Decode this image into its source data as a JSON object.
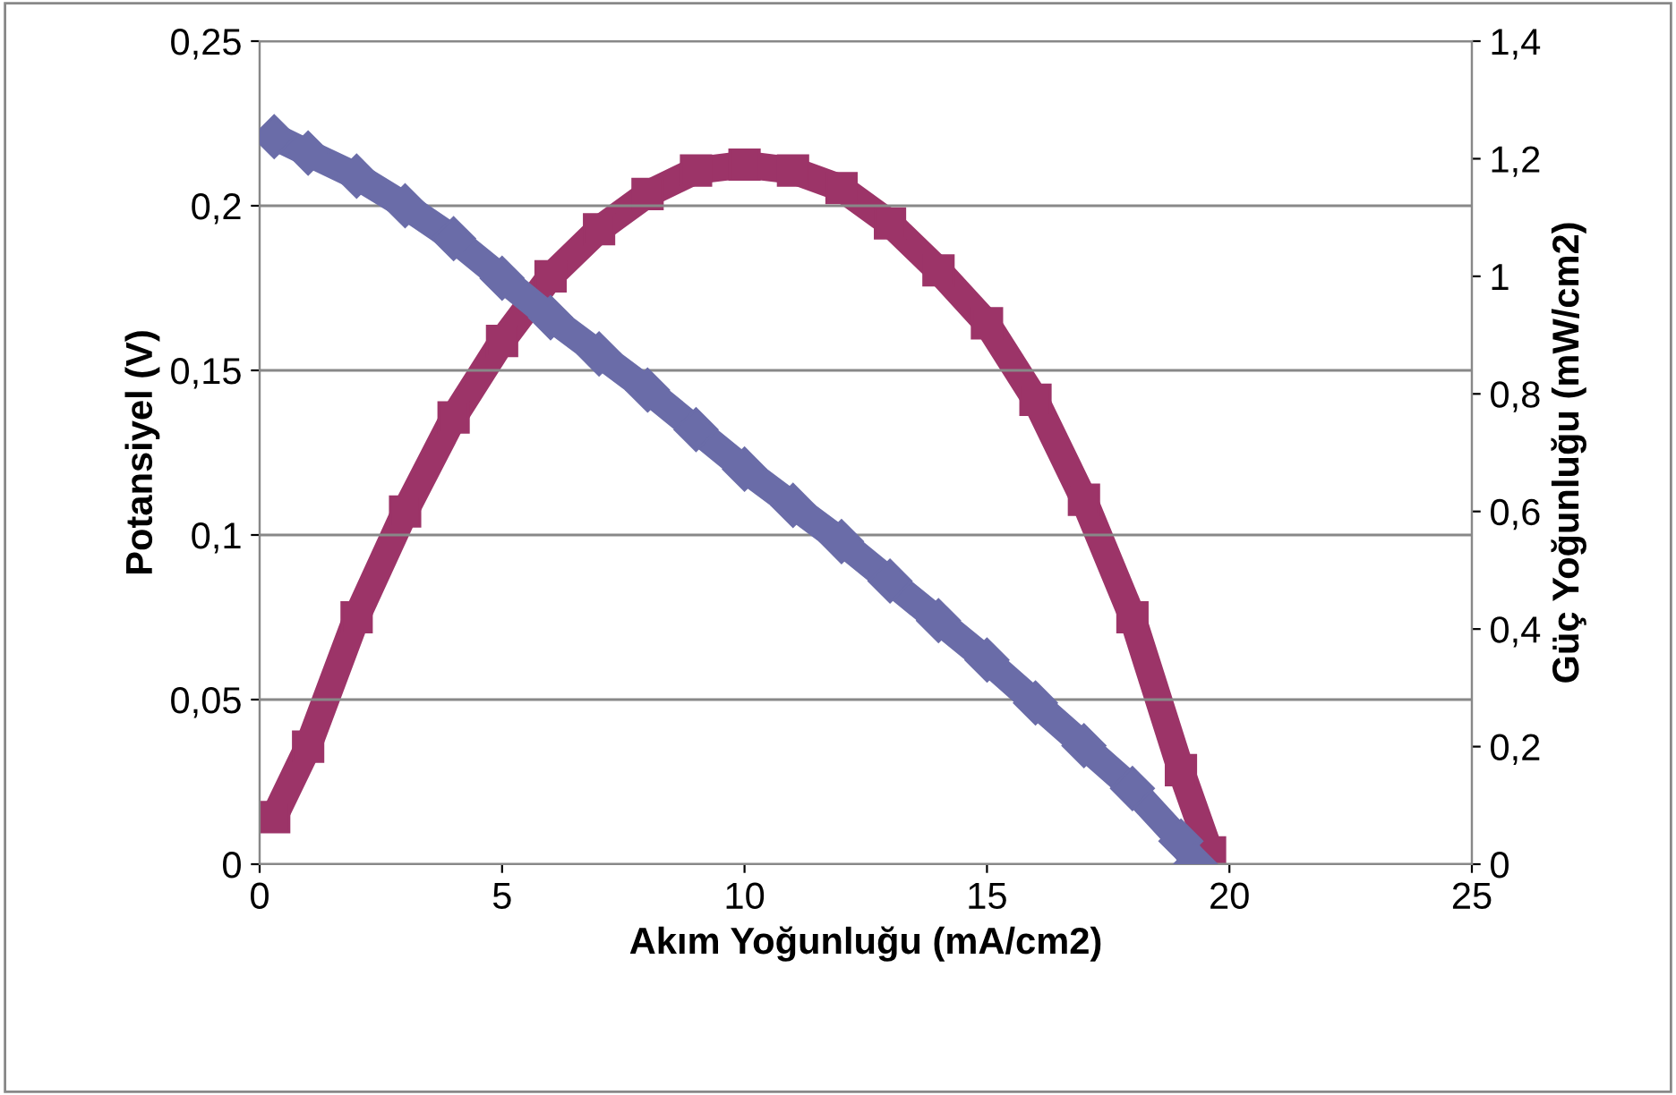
{
  "chart_data": {
    "type": "line",
    "line_style": "solid",
    "xlabel": "Akım Yoğunluğu (mA/cm2)",
    "ylabel": "Potansiyel (V)",
    "y2label": "Güç Yoğunluğu (mW/cm2)",
    "xlim": [
      0,
      25
    ],
    "xticks": [
      0,
      5,
      10,
      15,
      20,
      25
    ],
    "ylim": [
      0,
      0.25
    ],
    "yticks": [
      0,
      {
        "value": 0.05,
        "label": "0,05"
      },
      {
        "value": 0.1,
        "label": "0,1"
      },
      {
        "value": 0.15,
        "label": "0,15"
      },
      {
        "value": 0.2,
        "label": "0,2"
      },
      {
        "value": 0.25,
        "label": "0,25"
      }
    ],
    "y2lim": [
      0,
      1.4
    ],
    "y2ticks": [
      0,
      {
        "value": 0.2,
        "label": "0,2"
      },
      {
        "value": 0.4,
        "label": "0,4"
      },
      {
        "value": 0.6,
        "label": "0,6"
      },
      {
        "value": 0.8,
        "label": "0,8"
      },
      1,
      {
        "value": 1.2,
        "label": "1,2"
      },
      {
        "value": 1.4,
        "label": "1,4"
      }
    ],
    "grid": "y",
    "legend": false,
    "series": [
      {
        "color": "#6a6ca8",
        "marker": "diamond",
        "x": [
          0.3,
          1,
          2,
          3,
          4,
          5,
          6,
          7,
          8,
          9,
          10,
          11,
          12,
          13,
          14,
          15,
          16,
          17,
          18,
          19,
          19.3
        ],
        "values": [
          0.221,
          0.216,
          0.209,
          0.2,
          0.19,
          0.178,
          0.166,
          0.155,
          0.144,
          0.132,
          0.12,
          0.109,
          0.098,
          0.086,
          0.074,
          0.062,
          0.049,
          0.036,
          0.023,
          0.007,
          0
        ]
      },
      {
        "color": "#9c3468",
        "marker": "square",
        "axis": "y2",
        "x": [
          0.3,
          1,
          2,
          3,
          4,
          5,
          6,
          7,
          8,
          9,
          10,
          11,
          12,
          13,
          14,
          15,
          16,
          17,
          18,
          19,
          19.6
        ],
        "values": [
          0.08,
          0.2,
          0.42,
          0.6,
          0.76,
          0.89,
          1.0,
          1.08,
          1.14,
          1.18,
          1.19,
          1.18,
          1.15,
          1.09,
          1.01,
          0.92,
          0.79,
          0.62,
          0.42,
          0.16,
          0.02
        ]
      }
    ]
  }
}
